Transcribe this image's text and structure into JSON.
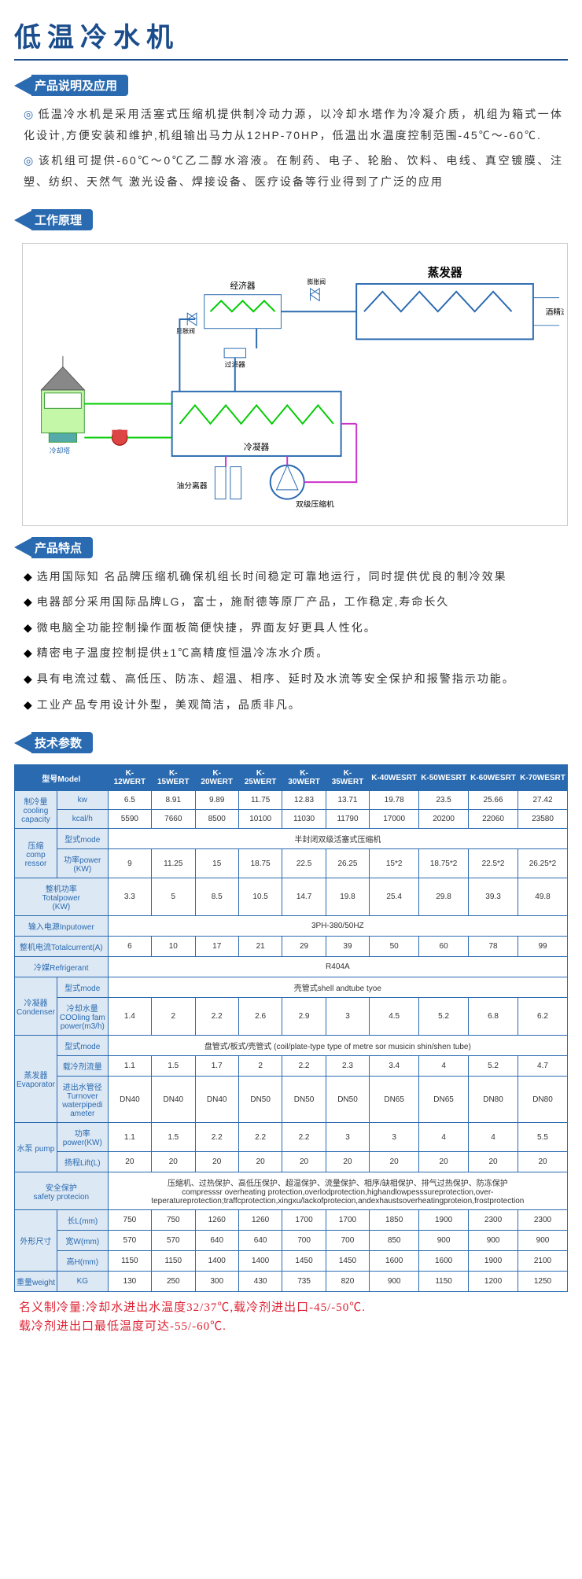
{
  "title": "低温冷水机",
  "colors": {
    "primary": "#2a6ab0",
    "title": "#1b4d8c",
    "light": "#dce8f4",
    "footnote": "#d23"
  },
  "sections": {
    "desc": {
      "label": "产品说明及应用",
      "p1": "低温冷水机是采用活塞式压缩机提供制冷动力源，以冷却水塔作为冷凝介质，机组为箱式一体化设计,方便安装和维护,机组输出马力从12HP-70HP，低温出水温度控制范围-45℃～-60℃.",
      "p2": "该机组可提供-60℃～0℃乙二醇水溶液。在制药、电子、轮胎、饮料、电线、真空镀膜、注塑、纺织、天然气 激光设备、焊接设备、医疗设备等行业得到了广泛的应用"
    },
    "principle": {
      "label": "工作原理",
      "labels": {
        "economizer": "经济器",
        "evaporator": "蒸发器",
        "alcohol_io": "酒精进出口",
        "filter": "过滤器",
        "condenser": "冷凝器",
        "oil_sep": "油分离器",
        "compressor": "双级压缩机",
        "tower": "冷却塔",
        "throttle": "膨胀阀"
      }
    },
    "features": {
      "label": "产品特点",
      "items": [
        "选用国际知 名品牌压缩机确保机组长时间稳定可靠地运行，同时提供优良的制冷效果",
        "电器部分采用国际品牌LG，富士，施耐德等原厂产品，工作稳定,寿命长久",
        "微电脑全功能控制操作面板简便快捷，界面友好更具人性化。",
        "精密电子温度控制提供±1℃高精度恒温冷冻水介质。",
        "具有电流过载、高低压、防冻、超温、相序、延时及水流等安全保护和报警指示功能。",
        "工业产品专用设计外型，美观简洁，品质非凡。"
      ]
    },
    "specs": {
      "label": "技术参数"
    }
  },
  "table": {
    "models": [
      "K-12WERT",
      "K-15WERT",
      "K-20WERT",
      "K-25WERT",
      "K-30WERT",
      "K-35WERT",
      "K-40WESRT",
      "K-50WESRT",
      "K-60WESRT",
      "K-70WESRT"
    ],
    "h_model": "型号Model",
    "h_cooling": "制冷量\ncooling\ncapacity",
    "cooling_kw_label": "kw",
    "cooling_kw": [
      "6.5",
      "8.91",
      "9.89",
      "11.75",
      "12.83",
      "13.71",
      "19.78",
      "23.5",
      "25.66",
      "27.42"
    ],
    "cooling_kcal_label": "kcal/h",
    "cooling_kcal": [
      "5590",
      "7660",
      "8500",
      "10100",
      "11030",
      "11790",
      "17000",
      "20200",
      "22060",
      "23580"
    ],
    "h_comp": "压缩\ncomp\nressor",
    "comp_mode_label": "型式mode",
    "comp_mode": "半封闭双级活塞式压缩机",
    "comp_power_label": "功率power\n(KW)",
    "comp_power": [
      "9",
      "11.25",
      "15",
      "18.75",
      "22.5",
      "26.25",
      "15*2",
      "18.75*2",
      "22.5*2",
      "26.25*2"
    ],
    "h_total_power": "整机功率\nTotalpower\n(KW)",
    "total_power": [
      "3.3",
      "5",
      "8.5",
      "10.5",
      "14.7",
      "19.8",
      "25.4",
      "29.8",
      "39.3",
      "49.8"
    ],
    "h_input": "输入电源Inputower",
    "input_val": "3PH-380/50HZ",
    "h_current": "整机电流Totalcurrent(A)",
    "current": [
      "6",
      "10",
      "17",
      "21",
      "29",
      "39",
      "50",
      "60",
      "78",
      "99"
    ],
    "h_refrig": "冷媒Refrigerant",
    "refrig_val": "R404A",
    "h_condenser": "冷凝器\nCondenser",
    "cond_mode_label": "型式mode",
    "cond_mode": "壳管式shell andtube tyoe",
    "cond_water_label": "冷却水量\nCOOling fam\npower(m3/h)",
    "cond_water": [
      "1.4",
      "2",
      "2.2",
      "2.6",
      "2.9",
      "3",
      "4.5",
      "5.2",
      "6.8",
      "6.2"
    ],
    "h_evap": "蒸发器\nEvaporator",
    "evap_mode_label": "型式mode",
    "evap_mode": "盘管式/板式/壳管式 (coil/plate-type type of metre sor musicin shin/shen tube)",
    "evap_flow_label": "载冷剂流量",
    "evap_flow": [
      "1.1",
      "1.5",
      "1.7",
      "2",
      "2.2",
      "2.3",
      "3.4",
      "4",
      "5.2",
      "4.7"
    ],
    "evap_pipe_label": "进出水管径\nTurnover\nwaterpipedi\nameter",
    "evap_pipe": [
      "DN40",
      "DN40",
      "DN40",
      "DN50",
      "DN50",
      "DN50",
      "DN65",
      "DN65",
      "DN80",
      "DN80"
    ],
    "h_pump": "水泵  pump",
    "pump_power_label": "功率power(KW)",
    "pump_power": [
      "1.1",
      "1.5",
      "2.2",
      "2.2",
      "2.2",
      "3",
      "3",
      "4",
      "4",
      "5.5"
    ],
    "pump_lift_label": "扬程Lift(L)",
    "pump_lift": [
      "20",
      "20",
      "20",
      "20",
      "20",
      "20",
      "20",
      "20",
      "20",
      "20"
    ],
    "h_safety": "安全保护\nsafety protecion",
    "safety_cn": "压缩机、过热保护、高低压保护、超温保护、流量保护、相序/缺相保护、排气过热保护、防冻保护",
    "safety_en": "compresssr overheating protection,overlodprotection,highandlowpesssureprotection,over-teperatureprotection;traffcprotection,xingxu/lackofprotecion,andexhaustsoverheatingproteion,frostprotection",
    "h_dim": "外形尺寸",
    "dim_l_label": "长L(mm)",
    "dim_l": [
      "750",
      "750",
      "1260",
      "1260",
      "1700",
      "1700",
      "1850",
      "1900",
      "2300",
      "2300"
    ],
    "dim_w_label": "宽W(mm)",
    "dim_w": [
      "570",
      "570",
      "640",
      "640",
      "700",
      "700",
      "850",
      "900",
      "900",
      "900"
    ],
    "dim_h_label": "高H(mm)",
    "dim_h": [
      "1150",
      "1150",
      "1400",
      "1400",
      "1450",
      "1450",
      "1600",
      "1600",
      "1900",
      "2100"
    ],
    "h_weight": "重量weight",
    "weight_label": "KG",
    "weight": [
      "130",
      "250",
      "300",
      "430",
      "735",
      "820",
      "900",
      "1150",
      "1200",
      "1250"
    ]
  },
  "footnote": {
    "l1": "名义制冷量:冷却水进出水温度32/37℃,载冷剂进出口-45/-50℃.",
    "l2": "载冷剂进出口最低温度可达-55/-60℃."
  }
}
